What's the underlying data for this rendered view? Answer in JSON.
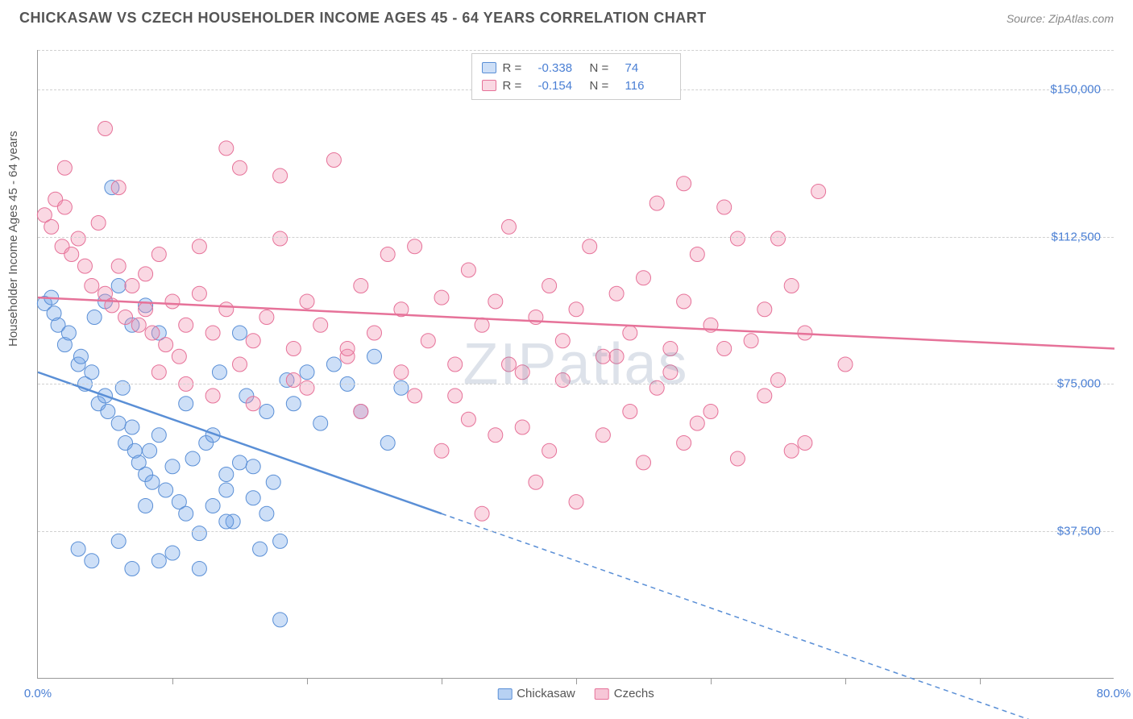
{
  "title": "CHICKASAW VS CZECH HOUSEHOLDER INCOME AGES 45 - 64 YEARS CORRELATION CHART",
  "source": "Source: ZipAtlas.com",
  "ylabel": "Householder Income Ages 45 - 64 years",
  "watermark": "ZIPatlas",
  "chart": {
    "type": "scatter",
    "xlim": [
      0,
      80
    ],
    "ylim": [
      0,
      160000
    ],
    "grid_h_values": [
      37500,
      75000,
      112500,
      150000
    ],
    "ytick_labels": [
      "$37,500",
      "$75,000",
      "$112,500",
      "$150,000"
    ],
    "xtick_positions": [
      0,
      10,
      20,
      30,
      40,
      50,
      60,
      70,
      80
    ],
    "x_axis_label_left": "0.0%",
    "x_axis_label_right": "80.0%",
    "background_color": "#ffffff",
    "grid_color": "#d0d0d0",
    "axis_color": "#999999",
    "label_color": "#4a7fd4",
    "point_radius": 9,
    "point_opacity": 0.45,
    "line_width": 2.5,
    "series": [
      {
        "name": "Chickasaw",
        "color": "#6fa4e8",
        "fill": "rgba(111,164,232,0.35)",
        "stroke": "#5a8fd6",
        "R": "-0.338",
        "N": "74",
        "trend_start": [
          0,
          78000
        ],
        "trend_solid_end": [
          30,
          42000
        ],
        "trend_dash_end": [
          80,
          -18000
        ],
        "points": [
          [
            0.5,
            95500
          ],
          [
            1,
            97000
          ],
          [
            1.2,
            93000
          ],
          [
            1.5,
            90000
          ],
          [
            2,
            85000
          ],
          [
            2.3,
            88000
          ],
          [
            3,
            80000
          ],
          [
            3.2,
            82000
          ],
          [
            3.5,
            75000
          ],
          [
            4,
            78000
          ],
          [
            4.2,
            92000
          ],
          [
            4.5,
            70000
          ],
          [
            5,
            72000
          ],
          [
            5.2,
            68000
          ],
          [
            5.5,
            125000
          ],
          [
            6,
            65000
          ],
          [
            6.3,
            74000
          ],
          [
            6.5,
            60000
          ],
          [
            7,
            64000
          ],
          [
            7.2,
            58000
          ],
          [
            7.5,
            55000
          ],
          [
            8,
            52000
          ],
          [
            8.3,
            58000
          ],
          [
            8.5,
            50000
          ],
          [
            9,
            62000
          ],
          [
            9.5,
            48000
          ],
          [
            10,
            54000
          ],
          [
            10.5,
            45000
          ],
          [
            11,
            42000
          ],
          [
            11.5,
            56000
          ],
          [
            12,
            37000
          ],
          [
            12.5,
            60000
          ],
          [
            13,
            44000
          ],
          [
            13.5,
            78000
          ],
          [
            14,
            52000
          ],
          [
            14.5,
            40000
          ],
          [
            15,
            55000
          ],
          [
            15.5,
            72000
          ],
          [
            16,
            46000
          ],
          [
            16.5,
            33000
          ],
          [
            17,
            68000
          ],
          [
            17.5,
            50000
          ],
          [
            18,
            35000
          ],
          [
            18.5,
            76000
          ],
          [
            3,
            33000
          ],
          [
            4,
            30000
          ],
          [
            6,
            35000
          ],
          [
            7,
            28000
          ],
          [
            8,
            44000
          ],
          [
            9,
            30000
          ],
          [
            5,
            96000
          ],
          [
            6,
            100000
          ],
          [
            7,
            90000
          ],
          [
            8,
            95000
          ],
          [
            9,
            88000
          ],
          [
            19,
            70000
          ],
          [
            20,
            78000
          ],
          [
            21,
            65000
          ],
          [
            22,
            80000
          ],
          [
            23,
            75000
          ],
          [
            24,
            68000
          ],
          [
            25,
            82000
          ],
          [
            26,
            60000
          ],
          [
            27,
            74000
          ],
          [
            15,
            88000
          ],
          [
            18,
            15000
          ],
          [
            10,
            32000
          ],
          [
            12,
            28000
          ],
          [
            14,
            40000
          ],
          [
            16,
            54000
          ],
          [
            11,
            70000
          ],
          [
            13,
            62000
          ],
          [
            14,
            48000
          ],
          [
            17,
            42000
          ]
        ]
      },
      {
        "name": "Czechs",
        "color": "#f08eb0",
        "fill": "rgba(240,142,176,0.35)",
        "stroke": "#e67299",
        "R": "-0.154",
        "N": "116",
        "trend_start": [
          0,
          97000
        ],
        "trend_solid_end": [
          80,
          84000
        ],
        "trend_dash_end": null,
        "points": [
          [
            0.5,
            118000
          ],
          [
            1,
            115000
          ],
          [
            1.3,
            122000
          ],
          [
            1.8,
            110000
          ],
          [
            2,
            120000
          ],
          [
            2.5,
            108000
          ],
          [
            3,
            112000
          ],
          [
            3.5,
            105000
          ],
          [
            4,
            100000
          ],
          [
            4.5,
            116000
          ],
          [
            5,
            98000
          ],
          [
            5.5,
            95000
          ],
          [
            6,
            105000
          ],
          [
            6.5,
            92000
          ],
          [
            7,
            100000
          ],
          [
            7.5,
            90000
          ],
          [
            8,
            94000
          ],
          [
            8.5,
            88000
          ],
          [
            9,
            108000
          ],
          [
            9.5,
            85000
          ],
          [
            10,
            96000
          ],
          [
            10.5,
            82000
          ],
          [
            11,
            90000
          ],
          [
            12,
            110000
          ],
          [
            13,
            88000
          ],
          [
            14,
            94000
          ],
          [
            15,
            130000
          ],
          [
            16,
            86000
          ],
          [
            17,
            92000
          ],
          [
            18,
            112000
          ],
          [
            19,
            84000
          ],
          [
            20,
            96000
          ],
          [
            21,
            90000
          ],
          [
            22,
            132000
          ],
          [
            23,
            82000
          ],
          [
            24,
            100000
          ],
          [
            25,
            88000
          ],
          [
            26,
            108000
          ],
          [
            27,
            94000
          ],
          [
            28,
            110000
          ],
          [
            29,
            86000
          ],
          [
            30,
            97000
          ],
          [
            31,
            80000
          ],
          [
            32,
            104000
          ],
          [
            33,
            90000
          ],
          [
            34,
            96000
          ],
          [
            35,
            115000
          ],
          [
            36,
            78000
          ],
          [
            37,
            92000
          ],
          [
            38,
            100000
          ],
          [
            39,
            86000
          ],
          [
            40,
            94000
          ],
          [
            41,
            110000
          ],
          [
            42,
            82000
          ],
          [
            43,
            98000
          ],
          [
            44,
            88000
          ],
          [
            45,
            102000
          ],
          [
            46,
            121000
          ],
          [
            47,
            84000
          ],
          [
            48,
            96000
          ],
          [
            49,
            108000
          ],
          [
            50,
            90000
          ],
          [
            51,
            120000
          ],
          [
            52,
            56000
          ],
          [
            53,
            86000
          ],
          [
            54,
            94000
          ],
          [
            55,
            76000
          ],
          [
            56,
            100000
          ],
          [
            57,
            88000
          ],
          [
            58,
            124000
          ],
          [
            14,
            135000
          ],
          [
            18,
            128000
          ],
          [
            5,
            140000
          ],
          [
            9,
            78000
          ],
          [
            11,
            75000
          ],
          [
            13,
            72000
          ],
          [
            16,
            70000
          ],
          [
            20,
            74000
          ],
          [
            24,
            68000
          ],
          [
            28,
            72000
          ],
          [
            32,
            66000
          ],
          [
            36,
            64000
          ],
          [
            40,
            45000
          ],
          [
            44,
            68000
          ],
          [
            48,
            60000
          ],
          [
            52,
            112000
          ],
          [
            56,
            58000
          ],
          [
            60,
            80000
          ],
          [
            48,
            126000
          ],
          [
            38,
            58000
          ],
          [
            42,
            62000
          ],
          [
            46,
            74000
          ],
          [
            50,
            68000
          ],
          [
            54,
            72000
          ],
          [
            30,
            58000
          ],
          [
            34,
            62000
          ],
          [
            15,
            80000
          ],
          [
            19,
            76000
          ],
          [
            23,
            84000
          ],
          [
            27,
            78000
          ],
          [
            31,
            72000
          ],
          [
            35,
            80000
          ],
          [
            39,
            76000
          ],
          [
            43,
            82000
          ],
          [
            47,
            78000
          ],
          [
            51,
            84000
          ],
          [
            55,
            112000
          ],
          [
            57,
            60000
          ],
          [
            33,
            42000
          ],
          [
            37,
            50000
          ],
          [
            6,
            125000
          ],
          [
            8,
            103000
          ],
          [
            12,
            98000
          ],
          [
            2,
            130000
          ],
          [
            45,
            55000
          ],
          [
            49,
            65000
          ]
        ]
      }
    ]
  },
  "legend_bottom": [
    {
      "label": "Chickasaw",
      "color": "rgba(111,164,232,0.5)",
      "border": "#5a8fd6"
    },
    {
      "label": "Czechs",
      "color": "rgba(240,142,176,0.5)",
      "border": "#e67299"
    }
  ]
}
